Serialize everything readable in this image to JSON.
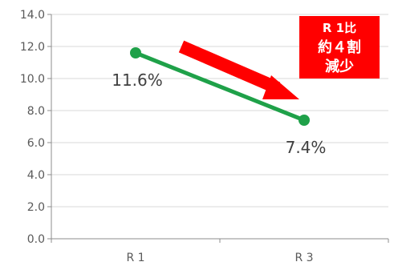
{
  "chart_data": {
    "type": "line",
    "categories": [
      "R 1",
      "R 3"
    ],
    "series": [
      {
        "values": [
          11.6,
          7.4
        ]
      }
    ],
    "data_labels": [
      "11.6%",
      "7.4%"
    ],
    "yticks": [
      "0.0",
      "2.0",
      "4.0",
      "6.0",
      "8.0",
      "10.0",
      "12.0",
      "14.0"
    ],
    "ylim": [
      0,
      14
    ],
    "grid": true,
    "line_color": "#1fa149",
    "marker_color": "#1fa149",
    "grid_color": "#d9d9d9"
  },
  "callout": {
    "line1": "R 1比",
    "line2": "約４割",
    "line3": "減少",
    "background": "#ff0000",
    "text_color": "#ffffff"
  },
  "trend_arrow": {
    "color": "#ff0000",
    "direction": "down-right"
  }
}
